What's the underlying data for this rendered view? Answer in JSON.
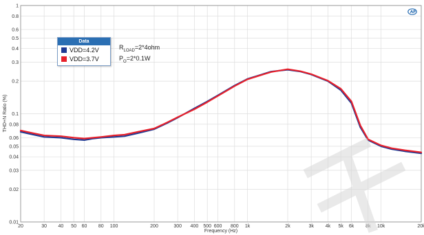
{
  "chart_data": {
    "type": "line",
    "title": "",
    "xlabel": "Frequency (Hz)",
    "ylabel": "THD+N Ratio (%)",
    "xscale": "log",
    "yscale": "log",
    "xlim": [
      20,
      20000
    ],
    "ylim": [
      0.01,
      1
    ],
    "grid": true,
    "legend": {
      "title": "Data",
      "placement": "top-left"
    },
    "x_ticks": [
      {
        "value": 20,
        "label": "20"
      },
      {
        "value": 30,
        "label": "30"
      },
      {
        "value": 40,
        "label": "40"
      },
      {
        "value": 50,
        "label": "50"
      },
      {
        "value": 60,
        "label": "60"
      },
      {
        "value": 80,
        "label": "80"
      },
      {
        "value": 100,
        "label": "100"
      },
      {
        "value": 200,
        "label": "200"
      },
      {
        "value": 300,
        "label": "300"
      },
      {
        "value": 400,
        "label": "400"
      },
      {
        "value": 500,
        "label": "500"
      },
      {
        "value": 600,
        "label": "600"
      },
      {
        "value": 800,
        "label": "800"
      },
      {
        "value": 1000,
        "label": "1k"
      },
      {
        "value": 2000,
        "label": "2k"
      },
      {
        "value": 3000,
        "label": "3k"
      },
      {
        "value": 4000,
        "label": "4k"
      },
      {
        "value": 5000,
        "label": "5k"
      },
      {
        "value": 6000,
        "label": "6k"
      },
      {
        "value": 8000,
        "label": "8k"
      },
      {
        "value": 10000,
        "label": "10k"
      },
      {
        "value": 20000,
        "label": "20k"
      }
    ],
    "y_ticks": [
      {
        "value": 0.01,
        "label": "0.01"
      },
      {
        "value": 0.02,
        "label": "0.02"
      },
      {
        "value": 0.03,
        "label": "0.03"
      },
      {
        "value": 0.04,
        "label": "0.04"
      },
      {
        "value": 0.05,
        "label": "0.05"
      },
      {
        "value": 0.06,
        "label": "0.06"
      },
      {
        "value": 0.08,
        "label": "0.08"
      },
      {
        "value": 0.1,
        "label": "0.1"
      },
      {
        "value": 0.2,
        "label": "0.2"
      },
      {
        "value": 0.3,
        "label": "0.3"
      },
      {
        "value": 0.4,
        "label": "0.4"
      },
      {
        "value": 0.5,
        "label": "0.5"
      },
      {
        "value": 0.6,
        "label": "0.6"
      },
      {
        "value": 0.8,
        "label": "0.8"
      },
      {
        "value": 1,
        "label": "1"
      }
    ],
    "series": [
      {
        "name": "VDD=4.2V",
        "color": "#1f3a93",
        "x": [
          20,
          25,
          30,
          40,
          50,
          60,
          70,
          80,
          100,
          120,
          150,
          200,
          250,
          300,
          400,
          500,
          600,
          800,
          1000,
          1500,
          2000,
          2500,
          3000,
          4000,
          5000,
          6000,
          7000,
          8000,
          10000,
          12000,
          15000,
          20000
        ],
        "y": [
          0.068,
          0.064,
          0.061,
          0.06,
          0.058,
          0.057,
          0.059,
          0.06,
          0.061,
          0.062,
          0.066,
          0.072,
          0.082,
          0.092,
          0.112,
          0.13,
          0.148,
          0.182,
          0.21,
          0.245,
          0.255,
          0.245,
          0.23,
          0.2,
          0.165,
          0.125,
          0.075,
          0.057,
          0.05,
          0.047,
          0.045,
          0.043
        ]
      },
      {
        "name": "VDD=3.7V",
        "color": "#e8202a",
        "x": [
          20,
          25,
          30,
          40,
          50,
          60,
          70,
          80,
          100,
          120,
          150,
          200,
          250,
          300,
          400,
          500,
          600,
          800,
          1000,
          1500,
          2000,
          2500,
          3000,
          4000,
          5000,
          6000,
          7000,
          8000,
          10000,
          12000,
          15000,
          20000
        ],
        "y": [
          0.07,
          0.066,
          0.063,
          0.062,
          0.06,
          0.059,
          0.06,
          0.061,
          0.063,
          0.064,
          0.068,
          0.073,
          0.083,
          0.093,
          0.11,
          0.128,
          0.146,
          0.18,
          0.208,
          0.243,
          0.258,
          0.247,
          0.232,
          0.202,
          0.17,
          0.13,
          0.078,
          0.058,
          0.051,
          0.048,
          0.046,
          0.044
        ]
      }
    ],
    "annotations": [
      {
        "main": "R",
        "sub": "LOAD",
        "rest": "=2*4ohm"
      },
      {
        "main": "P",
        "sub": "O",
        "rest": "=2*0.1W"
      }
    ]
  }
}
